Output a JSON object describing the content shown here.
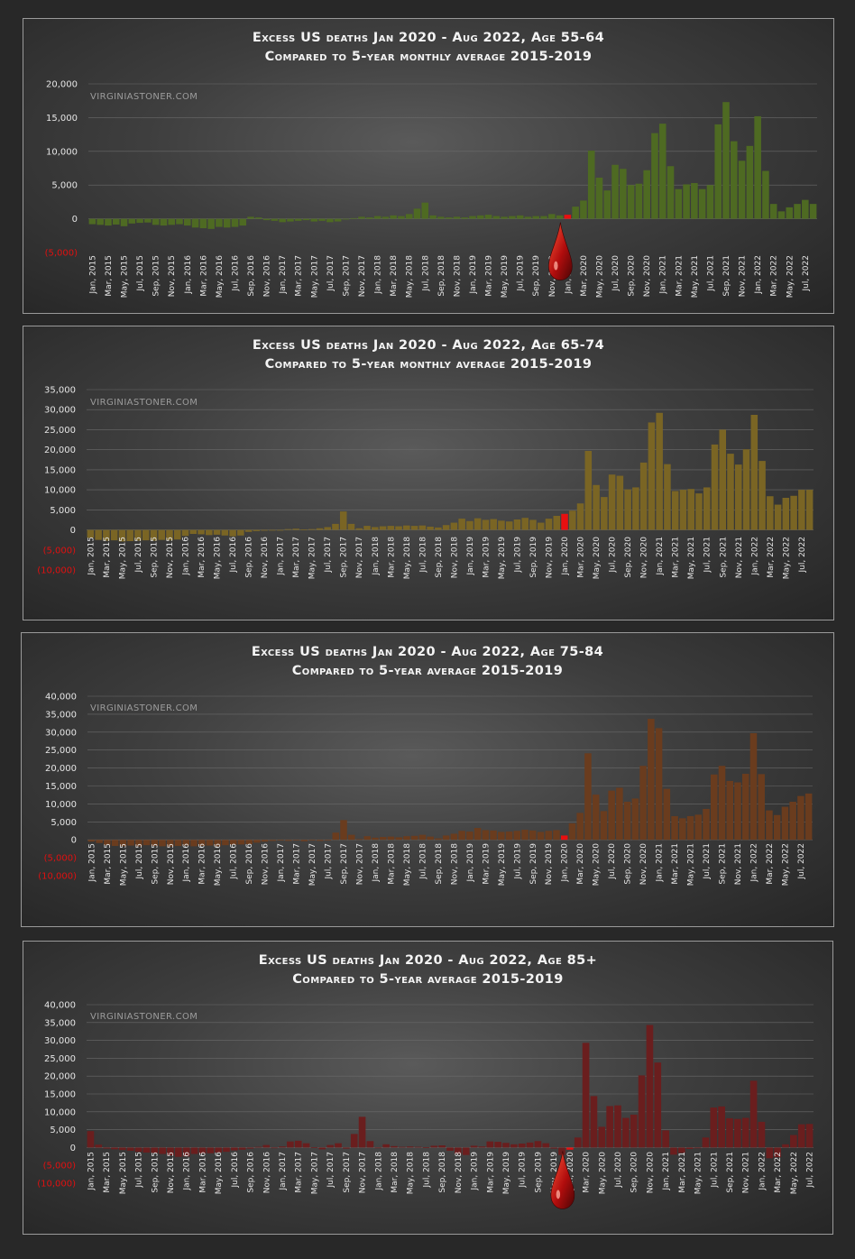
{
  "chart_data": [
    {
      "type": "bar",
      "title_line1": "Excess US deaths Jan 2020 - Aug 2022, Age 55-64",
      "title_line2": "Compared to 5-year monthly average 2015-2019",
      "watermark": "VIRGINIASTONER.COM",
      "color": "#4e6a22",
      "highlight_color": "#e81010",
      "highlight_index": 60,
      "has_drop": true,
      "ylim": [
        -5000,
        20000
      ],
      "yticks": [
        20000,
        15000,
        10000,
        5000,
        0,
        -5000
      ],
      "ytick_labels": [
        "20,000",
        "15,000",
        "10,000",
        "5,000",
        "0",
        "(5,000)"
      ],
      "x_labels": [
        "Jan, 2015",
        "Mar, 2015",
        "May, 2015",
        "Jul, 2015",
        "Sep, 2015",
        "Nov, 2015",
        "Jan, 2016",
        "Mar, 2016",
        "May, 2016",
        "Jul, 2016",
        "Sep, 2016",
        "Nov, 2016",
        "Jan, 2017",
        "Mar, 2017",
        "May, 2017",
        "Jul, 2017",
        "Sep, 2017",
        "Nov, 2017",
        "Jan, 2018",
        "Mar, 2018",
        "May, 2018",
        "Jul, 2018",
        "Sep, 2018",
        "Nov, 2018",
        "Jan, 2019",
        "Mar, 2019",
        "May, 2019",
        "Jul, 2019",
        "Sep, 2019",
        "Nov, 2019",
        "Jan, 2020",
        "Mar, 2020",
        "May, 2020",
        "Jul, 2020",
        "Sep, 2020",
        "Nov, 2020",
        "Jan, 2021",
        "Mar, 2021",
        "May, 2021",
        "Jul, 2021",
        "Sep, 2021",
        "Nov, 2021",
        "Jan, 2022",
        "Mar, 2022",
        "May, 2022",
        "Jul, 2022"
      ],
      "values": [
        -800,
        -900,
        -1000,
        -850,
        -1100,
        -700,
        -600,
        -550,
        -900,
        -1000,
        -900,
        -800,
        -1000,
        -1300,
        -1400,
        -1500,
        -1200,
        -1300,
        -1200,
        -1000,
        300,
        200,
        -200,
        -300,
        -500,
        -400,
        -300,
        -200,
        -400,
        -300,
        -500,
        -400,
        -100,
        100,
        300,
        200,
        400,
        300,
        500,
        400,
        700,
        1500,
        2400,
        500,
        300,
        200,
        300,
        200,
        400,
        500,
        600,
        400,
        300,
        400,
        500,
        300,
        400,
        400,
        700,
        500,
        600,
        1800,
        2700,
        10100,
        6100,
        4200,
        8000,
        7400,
        5000,
        5200,
        7200,
        12700,
        14100,
        7800,
        4400,
        5100,
        5300,
        4400,
        5000,
        14000,
        17300,
        11500,
        8600,
        10800,
        15200,
        7100,
        2200,
        1100,
        1700,
        2200,
        2800,
        2200
      ]
    },
    {
      "type": "bar",
      "title_line1": "Excess US deaths Jan 2020 - Aug 2022, Age 65-74",
      "title_line2": "Compared to 5-year monthly average 2015-2019",
      "watermark": "VIRGINIASTONER.COM",
      "color": "#7a6524",
      "highlight_color": "#e81010",
      "highlight_index": 60,
      "has_drop": false,
      "ylim": [
        -10000,
        35000
      ],
      "yticks": [
        35000,
        30000,
        25000,
        20000,
        15000,
        10000,
        5000,
        0,
        -5000,
        -10000
      ],
      "ytick_labels": [
        "35,000",
        "30,000",
        "25,000",
        "20,000",
        "15,000",
        "10,000",
        "5,000",
        "0",
        "(5,000)",
        "(10,000)"
      ],
      "x_labels": [
        "Jan, 2015",
        "Mar, 2015",
        "May, 2015",
        "Jul, 2015",
        "Sep, 2015",
        "Nov, 2015",
        "Jan, 2016",
        "Mar, 2016",
        "May, 2016",
        "Jul, 2016",
        "Sep, 2016",
        "Nov, 2016",
        "Jan, 2017",
        "Mar, 2017",
        "May, 2017",
        "Jul, 2017",
        "Sep, 2017",
        "Nov, 2017",
        "Jan, 2018",
        "Mar, 2018",
        "May, 2018",
        "Jul, 2018",
        "Sep, 2018",
        "Nov, 2018",
        "Jan, 2019",
        "Mar, 2019",
        "May, 2019",
        "Jul, 2019",
        "Sep, 2019",
        "Nov, 2019",
        "Jan, 2020",
        "Mar, 2020",
        "May, 2020",
        "Jul, 2020",
        "Sep, 2020",
        "Nov, 2020",
        "Jan, 2021",
        "Mar, 2021",
        "May, 2021",
        "Jul, 2021",
        "Sep, 2021",
        "Nov, 2021",
        "Jan, 2022",
        "Mar, 2022",
        "May, 2022",
        "Jul, 2022"
      ],
      "values": [
        -2000,
        -2500,
        -2700,
        -2600,
        -2900,
        -2800,
        -2700,
        -2600,
        -2700,
        -2500,
        -2600,
        -2400,
        -1500,
        -1000,
        -1100,
        -1300,
        -1200,
        -1400,
        -1600,
        -1400,
        -500,
        -300,
        -200,
        -100,
        0,
        200,
        300,
        100,
        200,
        400,
        700,
        1500,
        4600,
        1500,
        400,
        1000,
        700,
        900,
        1000,
        900,
        1100,
        1000,
        1100,
        800,
        600,
        1200,
        1800,
        2800,
        2200,
        2900,
        2500,
        2700,
        2300,
        2100,
        2600,
        3000,
        2500,
        1800,
        2800,
        3500,
        4000,
        4800,
        6600,
        19700,
        11200,
        8200,
        13800,
        13500,
        10100,
        10600,
        16800,
        26800,
        29200,
        16400,
        9700,
        10000,
        10200,
        9100,
        10600,
        21300,
        25000,
        19000,
        16300,
        20100,
        28700,
        17200,
        8400,
        6300,
        8000,
        8500,
        10000,
        10000
      ]
    },
    {
      "type": "bar",
      "title_line1": "Excess US deaths Jan 2020 - Aug 2022, Age 75-84",
      "title_line2": "Compared to 5-year average 2015-2019",
      "watermark": "VIRGINIASTONER.COM",
      "color": "#6a3c1e",
      "highlight_color": "#e81010",
      "highlight_index": 60,
      "has_drop": false,
      "ylim": [
        -10000,
        40000
      ],
      "yticks": [
        40000,
        35000,
        30000,
        25000,
        20000,
        15000,
        10000,
        5000,
        0,
        -5000,
        -10000
      ],
      "ytick_labels": [
        "40,000",
        "35,000",
        "30,000",
        "25,000",
        "20,000",
        "15,000",
        "10,000",
        "5,000",
        "0",
        "(5,000)",
        "(10,000)"
      ],
      "x_labels": [
        "Jan, 2015",
        "Mar, 2015",
        "May, 2015",
        "Jul, 2015",
        "Sep, 2015",
        "Nov, 2015",
        "Jan, 2016",
        "Mar, 2016",
        "May, 2016",
        "Jul, 2016",
        "Sep, 2016",
        "Nov, 2016",
        "Jan, 2017",
        "Mar, 2017",
        "May, 2017",
        "Jul, 2017",
        "Sep, 2017",
        "Nov, 2017",
        "Jan, 2018",
        "Mar, 2018",
        "May, 2018",
        "Jul, 2018",
        "Sep, 2018",
        "Nov, 2018",
        "Jan, 2019",
        "Mar, 2019",
        "May, 2019",
        "Jul, 2019",
        "Sep, 2019",
        "Nov, 2019",
        "Jan, 2020",
        "Mar, 2020",
        "May, 2020",
        "Jul, 2020",
        "Sep, 2020",
        "Nov, 2020",
        "Jan, 2021",
        "Mar, 2021",
        "May, 2021",
        "Jul, 2021",
        "Sep, 2021",
        "Nov, 2021",
        "Jan, 2022",
        "Mar, 2022",
        "May, 2022",
        "Jul, 2022"
      ],
      "values": [
        -500,
        -900,
        -1500,
        -1700,
        -1800,
        -1600,
        -1800,
        -1500,
        -1700,
        -1800,
        -1900,
        -1700,
        -1600,
        -1800,
        -1700,
        -1600,
        -1800,
        -1500,
        -1400,
        -1300,
        -1200,
        -800,
        -500,
        -300,
        -200,
        -300,
        -100,
        -400,
        -200,
        -300,
        -100,
        2000,
        5500,
        1400,
        200,
        1000,
        600,
        800,
        900,
        700,
        1000,
        1100,
        1400,
        900,
        400,
        1200,
        1700,
        2500,
        2300,
        3300,
        2700,
        2600,
        2200,
        2300,
        2500,
        2800,
        2600,
        2200,
        2500,
        2700,
        1200,
        4600,
        7500,
        24100,
        12600,
        8000,
        13700,
        14500,
        10600,
        11500,
        20600,
        33700,
        31100,
        14200,
        6600,
        6000,
        6600,
        7000,
        8600,
        18200,
        20600,
        16400,
        16000,
        18400,
        29700,
        18300,
        8200,
        6900,
        9200,
        10600,
        12200,
        12900
      ]
    },
    {
      "type": "bar",
      "title_line1": "Excess US deaths Jan 2020 - Aug 2022, Age 85+",
      "title_line2": "Compared to 5-year average 2015-2019",
      "watermark": "VIRGINIASTONER.COM",
      "color": "#6a1e1e",
      "highlight_color": "#e81010",
      "highlight_index": 60,
      "has_drop": true,
      "ylim": [
        -10000,
        40000
      ],
      "yticks": [
        40000,
        35000,
        30000,
        25000,
        20000,
        15000,
        10000,
        5000,
        0,
        -5000,
        -10000
      ],
      "ytick_labels": [
        "40,000",
        "35,000",
        "30,000",
        "25,000",
        "20,000",
        "15,000",
        "10,000",
        "5,000",
        "0",
        "(5,000)",
        "(10,000)"
      ],
      "x_labels": [
        "Jan, 2015",
        "Mar, 2015",
        "May, 2015",
        "Jul, 2015",
        "Sep, 2015",
        "Nov, 2015",
        "Jan, 2016",
        "Mar, 2016",
        "May, 2016",
        "Jul, 2016",
        "Sep, 2016",
        "Nov, 2016",
        "Jan, 2017",
        "Mar, 2017",
        "May, 2017",
        "Jul, 2017",
        "Sep, 2017",
        "Nov, 2017",
        "Jan, 2018",
        "Mar, 2018",
        "May, 2018",
        "Jul, 2018",
        "Sep, 2018",
        "Nov, 2018",
        "Jan, 2019",
        "Mar, 2019",
        "May, 2019",
        "Jul, 2019",
        "Sep, 2019",
        "Nov, 2019",
        "Jan, 2020",
        "Mar, 2020",
        "May, 2020",
        "Jul, 2020",
        "Sep, 2020",
        "Nov, 2020",
        "Jan, 2021",
        "Mar, 2021",
        "May, 2021",
        "Jul, 2021",
        "Sep, 2021",
        "Nov, 2021",
        "Jan, 2022",
        "Mar, 2022",
        "May, 2022",
        "Jul, 2022"
      ],
      "values": [
        4600,
        800,
        -300,
        -500,
        -700,
        -900,
        -1200,
        -1400,
        -1500,
        -1800,
        -2200,
        -2600,
        -2500,
        -1800,
        -1700,
        -1600,
        -1400,
        -1200,
        -800,
        -600,
        -300,
        200,
        700,
        -200,
        300,
        1700,
        1900,
        1200,
        100,
        -500,
        700,
        1200,
        -300,
        3800,
        8600,
        1800,
        -200,
        900,
        400,
        200,
        300,
        200,
        100,
        500,
        600,
        -900,
        -1800,
        -2100,
        500,
        300,
        1700,
        1600,
        1300,
        900,
        1100,
        1400,
        1800,
        1200,
        -300,
        -2100,
        -600,
        2800,
        29300,
        14400,
        5800,
        11600,
        11800,
        8300,
        9200,
        20200,
        34300,
        23800,
        4800,
        -2000,
        -1500,
        -400,
        -200,
        2800,
        11200,
        11500,
        8200,
        8000,
        8300,
        18700,
        7200,
        -3000,
        -2700,
        900,
        3500,
        6500,
        6600
      ]
    }
  ]
}
